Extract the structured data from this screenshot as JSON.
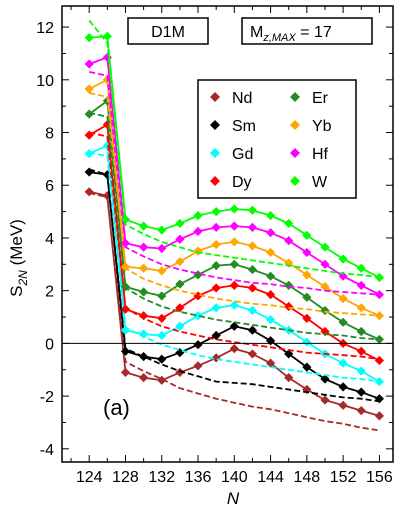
{
  "chart_data": {
    "type": "line",
    "title": "",
    "xlabel": "N",
    "ylabel": "S2N (MeV)",
    "ylabel_main": "S",
    "ylabel_sub": "2N",
    "ylabel_unit": " (MeV)",
    "xlim": [
      121,
      157.5
    ],
    "ylim": [
      -4.5,
      12.8
    ],
    "x_ticks": [
      124,
      128,
      132,
      136,
      140,
      144,
      148,
      152,
      156
    ],
    "y_ticks": [
      -4,
      -2,
      0,
      2,
      4,
      6,
      8,
      10,
      12
    ],
    "grid": false,
    "legend_position": "top-right",
    "panel_label": "(a)",
    "box_left": "D1M",
    "box_right_main": "M",
    "box_right_sub": "z,MAX",
    "box_right_tail": " = 17",
    "x": [
      124,
      126,
      128,
      130,
      132,
      134,
      136,
      138,
      140,
      142,
      144,
      146,
      148,
      150,
      152,
      154,
      156
    ],
    "series": [
      {
        "name": "Nd",
        "color": "#a52a2a",
        "values": [
          5.75,
          5.6,
          -1.1,
          -1.3,
          -1.4,
          -1.1,
          -0.85,
          -0.55,
          -0.2,
          -0.4,
          -0.75,
          -1.3,
          -1.75,
          -2.15,
          -2.35,
          -2.55,
          -2.75
        ],
        "reference": [
          5.7,
          5.55,
          -0.7,
          -1.05,
          -1.35,
          -1.7,
          -1.9,
          -2.1,
          -2.25,
          -2.4,
          -2.5,
          -2.65,
          -2.8,
          -2.95,
          -3.05,
          -3.2,
          -3.3
        ]
      },
      {
        "name": "Sm",
        "color": "#000000",
        "values": [
          6.5,
          6.4,
          -0.3,
          -0.5,
          -0.6,
          -0.35,
          -0.05,
          0.3,
          0.65,
          0.5,
          0.1,
          -0.4,
          -0.9,
          -1.35,
          -1.65,
          -1.85,
          -2.1
        ],
        "reference": [
          6.6,
          6.4,
          -0.2,
          -0.5,
          -0.8,
          -1.05,
          -1.25,
          -1.45,
          -1.5,
          -1.55,
          -1.65,
          -1.75,
          -1.85,
          -1.95,
          -2.05,
          -2.1,
          -2.2
        ]
      },
      {
        "name": "Gd",
        "color": "#00ffff",
        "values": [
          7.2,
          7.5,
          0.5,
          0.35,
          0.3,
          0.65,
          1.05,
          1.35,
          1.45,
          1.25,
          0.9,
          0.5,
          0.05,
          -0.4,
          -0.75,
          -1.05,
          -1.45
        ],
        "reference": [
          7.25,
          7.1,
          0.6,
          0.25,
          -0.05,
          -0.25,
          -0.45,
          -0.6,
          -0.7,
          -0.8,
          -0.9,
          -1.0,
          -1.1,
          -1.2,
          -1.3,
          -1.35,
          -1.45
        ]
      },
      {
        "name": "Dy",
        "color": "#ff0000",
        "values": [
          7.9,
          8.3,
          1.3,
          1.05,
          0.95,
          1.35,
          1.8,
          2.1,
          2.2,
          2.1,
          1.85,
          1.4,
          0.95,
          0.45,
          0.0,
          -0.3,
          -0.65
        ],
        "reference": [
          8.0,
          7.85,
          1.35,
          0.95,
          0.65,
          0.45,
          0.3,
          0.15,
          0.05,
          -0.05,
          -0.15,
          -0.25,
          -0.35,
          -0.4,
          -0.45,
          -0.5,
          -0.6
        ]
      },
      {
        "name": "Er",
        "color": "#228b22",
        "values": [
          8.7,
          9.2,
          2.15,
          1.95,
          1.8,
          2.25,
          2.6,
          2.95,
          3.0,
          2.8,
          2.55,
          2.2,
          1.75,
          1.25,
          0.8,
          0.45,
          0.15
        ],
        "reference": [
          8.75,
          8.6,
          2.1,
          1.7,
          1.4,
          1.2,
          1.05,
          0.9,
          0.8,
          0.7,
          0.6,
          0.5,
          0.4,
          0.35,
          0.3,
          0.2,
          0.15
        ]
      },
      {
        "name": "Yb",
        "color": "#ffa500",
        "values": [
          9.65,
          10.0,
          2.9,
          2.85,
          2.75,
          3.1,
          3.5,
          3.75,
          3.85,
          3.7,
          3.45,
          3.05,
          2.6,
          2.15,
          1.7,
          1.35,
          1.05
        ],
        "reference": [
          9.5,
          9.35,
          2.85,
          2.45,
          2.2,
          2.0,
          1.85,
          1.7,
          1.6,
          1.5,
          1.45,
          1.35,
          1.3,
          1.2,
          1.15,
          1.1,
          1.05
        ]
      },
      {
        "name": "Hf",
        "color": "#ff00ff",
        "values": [
          10.6,
          10.85,
          3.8,
          3.65,
          3.6,
          3.95,
          4.25,
          4.4,
          4.45,
          4.4,
          4.2,
          3.9,
          3.45,
          3.0,
          2.55,
          2.2,
          1.85
        ],
        "reference": [
          10.3,
          10.15,
          3.65,
          3.3,
          3.0,
          2.8,
          2.65,
          2.5,
          2.4,
          2.3,
          2.25,
          2.15,
          2.1,
          2.0,
          1.95,
          1.9,
          1.85
        ]
      },
      {
        "name": "W",
        "color": "#00ff00",
        "values": [
          11.6,
          11.65,
          4.7,
          4.45,
          4.3,
          4.55,
          4.85,
          5.0,
          5.1,
          5.05,
          4.85,
          4.55,
          4.1,
          3.65,
          3.2,
          2.85,
          2.5
        ],
        "reference": [
          12.25,
          11.4,
          4.5,
          4.15,
          3.85,
          3.65,
          3.45,
          3.35,
          3.25,
          3.15,
          3.05,
          2.95,
          2.85,
          2.75,
          2.65,
          2.6,
          2.5
        ]
      }
    ]
  }
}
